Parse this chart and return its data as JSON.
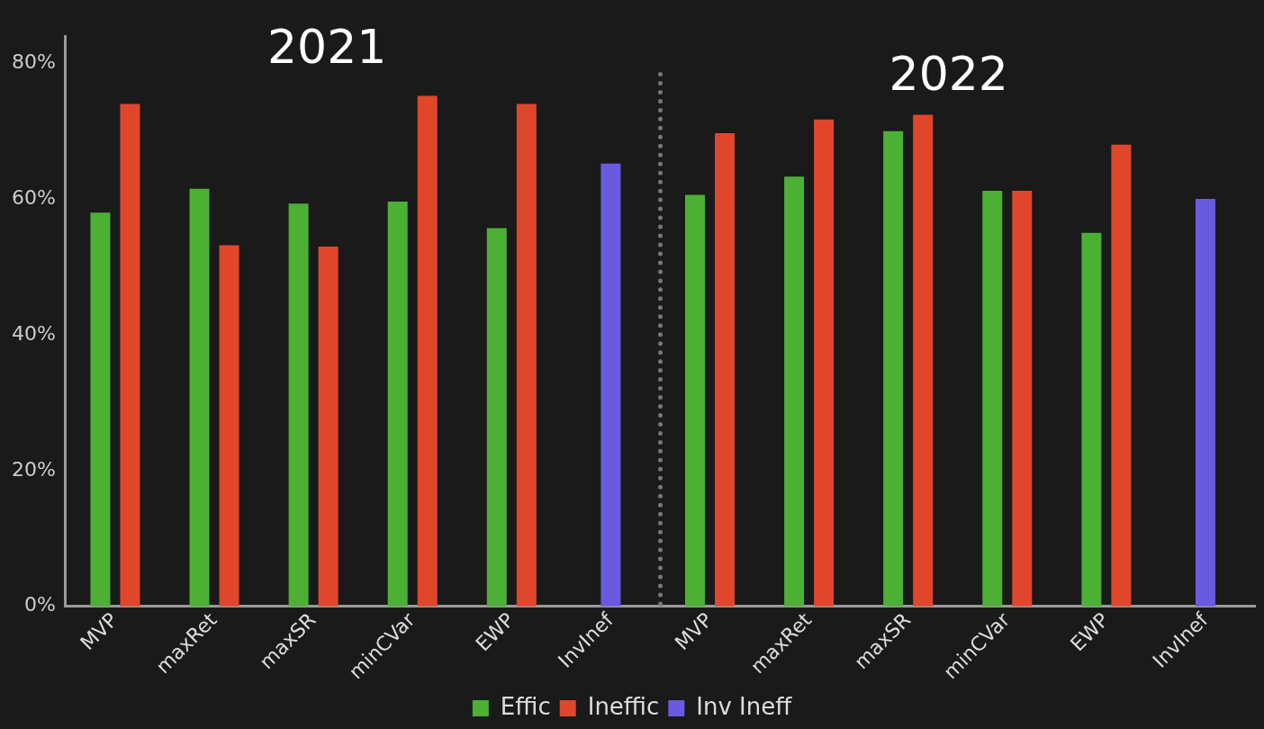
{
  "chart_data": {
    "type": "bar",
    "categories": [
      "MVP",
      "maxRet",
      "maxSR",
      "minCVar",
      "EWP",
      "InvInef",
      "MVP",
      "maxRet",
      "maxSR",
      "minCVar",
      "EWP",
      "InvInef"
    ],
    "series": [
      {
        "name": "Effic",
        "color": "#4cb035",
        "values": [
          58,
          61.5,
          59.3,
          59.6,
          55.7,
          null,
          60.6,
          63.3,
          70,
          61.2,
          55,
          null
        ]
      },
      {
        "name": "Ineffic",
        "color": "#e0472a",
        "values": [
          74,
          53.2,
          53,
          75.2,
          74,
          null,
          69.7,
          71.7,
          72.4,
          61.2,
          68,
          null
        ]
      },
      {
        "name": "Inv Ineff",
        "color": "#6a5ae0",
        "values": [
          null,
          null,
          null,
          null,
          null,
          65.2,
          null,
          null,
          null,
          null,
          null,
          60
        ]
      }
    ],
    "ylim": [
      0,
      84
    ],
    "yticks": [
      {
        "value": 0,
        "label": "0%"
      },
      {
        "value": 20,
        "label": "20%"
      },
      {
        "value": 40,
        "label": "40%"
      },
      {
        "value": 60,
        "label": "60%"
      },
      {
        "value": 80,
        "label": "80%"
      }
    ],
    "annotations": [
      "2021",
      "2022"
    ],
    "legend": "bottom",
    "grid": false
  }
}
